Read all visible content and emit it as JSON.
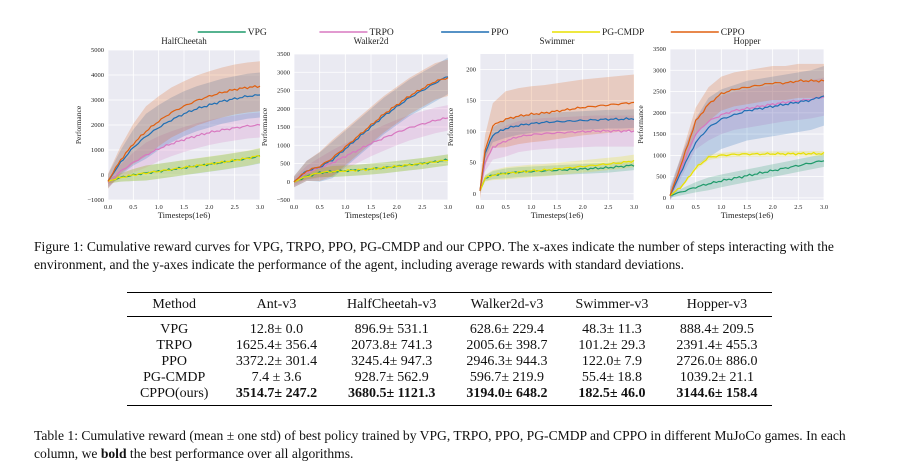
{
  "legend": [
    {
      "name": "VPG",
      "color": "#1f9a6b"
    },
    {
      "name": "TRPO",
      "color": "#d878c0"
    },
    {
      "name": "PPO",
      "color": "#1f6fb4"
    },
    {
      "name": "PG-CMDP",
      "color": "#e8e000"
    },
    {
      "name": "CPPO",
      "color": "#e06010"
    }
  ],
  "chart_data": [
    {
      "type": "line",
      "title": "HalfCheetah",
      "xlabel": "Timesteps(1e6)",
      "ylabel": "Performance",
      "xlim": [
        0,
        3.0
      ],
      "ylim": [
        -1000,
        5000
      ],
      "xticks": [
        "0.0",
        "0.5",
        "1.0",
        "1.5",
        "2.0",
        "2.5",
        "3.0"
      ],
      "yticks": [
        "−1000",
        "0",
        "1000",
        "2000",
        "3000",
        "4000",
        "5000"
      ],
      "x": [
        0,
        0.25,
        0.5,
        0.75,
        1.0,
        1.25,
        1.5,
        1.75,
        2.0,
        2.25,
        2.5,
        2.75,
        3.0
      ],
      "series": [
        {
          "name": "VPG",
          "values": [
            -250,
            -100,
            0,
            80,
            150,
            220,
            290,
            360,
            430,
            500,
            580,
            660,
            760
          ],
          "std": 300
        },
        {
          "name": "TRPO",
          "values": [
            -300,
            150,
            500,
            800,
            1050,
            1250,
            1420,
            1570,
            1700,
            1800,
            1880,
            1960,
            2000
          ],
          "std": 500
        },
        {
          "name": "PPO",
          "values": [
            -250,
            500,
            1100,
            1550,
            1900,
            2200,
            2450,
            2650,
            2800,
            2950,
            3050,
            3150,
            3200
          ],
          "std": 900
        },
        {
          "name": "PG-CMDP",
          "values": [
            -250,
            -100,
            0,
            80,
            150,
            220,
            300,
            370,
            440,
            510,
            590,
            670,
            780
          ],
          "std": 300
        },
        {
          "name": "CPPO",
          "values": [
            -250,
            600,
            1250,
            1750,
            2150,
            2500,
            2750,
            2980,
            3150,
            3300,
            3420,
            3500,
            3550
          ],
          "std": 1000
        }
      ]
    },
    {
      "type": "line",
      "title": "Walker2d",
      "xlabel": "Timesteps(1e6)",
      "ylabel": "Performance",
      "xlim": [
        0,
        3.0
      ],
      "ylim": [
        -500,
        3500
      ],
      "xticks": [
        "0.0",
        "0.5",
        "1.0",
        "1.5",
        "2.0",
        "2.5",
        "3.0"
      ],
      "yticks": [
        "−500",
        "0",
        "500",
        "1000",
        "1500",
        "2000",
        "2500",
        "3000",
        "3500"
      ],
      "x": [
        0,
        0.25,
        0.5,
        0.75,
        1.0,
        1.25,
        1.5,
        1.75,
        2.0,
        2.25,
        2.5,
        2.75,
        3.0
      ],
      "series": [
        {
          "name": "VPG",
          "values": [
            0,
            150,
            250,
            280,
            300,
            320,
            350,
            380,
            420,
            460,
            500,
            550,
            600
          ],
          "std": 150
        },
        {
          "name": "TRPO",
          "values": [
            0,
            250,
            380,
            520,
            700,
            870,
            1050,
            1200,
            1350,
            1480,
            1580,
            1680,
            1750
          ],
          "std": 350
        },
        {
          "name": "PPO",
          "values": [
            0,
            300,
            400,
            600,
            900,
            1200,
            1500,
            1800,
            2050,
            2300,
            2500,
            2700,
            2900
          ],
          "std": 500
        },
        {
          "name": "PG-CMDP",
          "values": [
            0,
            150,
            250,
            280,
            300,
            320,
            350,
            380,
            420,
            460,
            500,
            550,
            600
          ],
          "std": 150
        },
        {
          "name": "CPPO",
          "values": [
            0,
            300,
            420,
            650,
            950,
            1250,
            1550,
            1850,
            2100,
            2350,
            2550,
            2750,
            2850
          ],
          "std": 500
        }
      ]
    },
    {
      "type": "line",
      "title": "Swimmer",
      "xlabel": "Timesteps(1e6)",
      "ylabel": "Performance",
      "xlim": [
        0,
        3.0
      ],
      "ylim": [
        -10,
        225
      ],
      "xticks": [
        "0.0",
        "0.5",
        "1.0",
        "1.5",
        "2.0",
        "2.5",
        "3.0"
      ],
      "yticks": [
        "0",
        "50",
        "100",
        "150",
        "200"
      ],
      "x": [
        0,
        0.1,
        0.25,
        0.5,
        0.75,
        1.0,
        1.25,
        1.5,
        1.75,
        2.0,
        2.25,
        2.5,
        2.75,
        3.0
      ],
      "series": [
        {
          "name": "VPG",
          "values": [
            5,
            25,
            30,
            33,
            35,
            36,
            37,
            38,
            39,
            40,
            41,
            42,
            44,
            46
          ],
          "std": 8
        },
        {
          "name": "TRPO",
          "values": [
            5,
            50,
            75,
            85,
            92,
            95,
            97,
            98,
            99,
            100,
            101,
            101,
            101,
            101
          ],
          "std": 25
        },
        {
          "name": "PPO",
          "values": [
            5,
            65,
            95,
            105,
            110,
            113,
            115,
            116,
            117,
            118,
            119,
            120,
            120,
            121
          ],
          "std": 15
        },
        {
          "name": "PG-CMDP",
          "values": [
            5,
            25,
            30,
            33,
            35,
            37,
            38,
            40,
            42,
            44,
            46,
            48,
            50,
            53
          ],
          "std": 10
        },
        {
          "name": "CPPO",
          "values": [
            5,
            70,
            110,
            120,
            125,
            128,
            130,
            133,
            136,
            139,
            141,
            143,
            145,
            147
          ],
          "std": 45
        }
      ]
    },
    {
      "type": "line",
      "title": "Hopper",
      "xlabel": "Timesteps(1e6)",
      "ylabel": "Performance",
      "xlim": [
        0,
        3.0
      ],
      "ylim": [
        -50,
        3500
      ],
      "xticks": [
        "0.0",
        "0.5",
        "1.0",
        "1.5",
        "2.0",
        "2.5",
        "3.0"
      ],
      "yticks": [
        "0",
        "500",
        "1000",
        "1500",
        "2000",
        "2500",
        "3000",
        "3500"
      ],
      "x": [
        0,
        0.25,
        0.5,
        0.75,
        1.0,
        1.25,
        1.5,
        1.75,
        2.0,
        2.25,
        2.5,
        2.75,
        3.0
      ],
      "series": [
        {
          "name": "VPG",
          "values": [
            50,
            150,
            250,
            330,
            400,
            460,
            520,
            580,
            640,
            700,
            760,
            820,
            880
          ],
          "std": 150
        },
        {
          "name": "TRPO",
          "values": [
            50,
            800,
            1500,
            1800,
            1950,
            2050,
            2100,
            2150,
            2200,
            2250,
            2280,
            2320,
            2380
          ],
          "std": 450
        },
        {
          "name": "PPO",
          "values": [
            50,
            700,
            1300,
            1650,
            1850,
            1950,
            2050,
            2100,
            2150,
            2200,
            2250,
            2300,
            2400
          ],
          "std": 700
        },
        {
          "name": "PG-CMDP",
          "values": [
            50,
            300,
            700,
            950,
            1000,
            1020,
            1030,
            1030,
            1035,
            1035,
            1040,
            1040,
            1040
          ],
          "std": 60
        },
        {
          "name": "CPPO",
          "values": [
            50,
            900,
            1800,
            2200,
            2450,
            2550,
            2600,
            2650,
            2700,
            2700,
            2750,
            2750,
            2750
          ],
          "std": 400
        }
      ]
    }
  ],
  "figure_caption": "Figure 1: Cumulative reward curves for VPG, TRPO, PPO, PG-CMDP and our CPPO. The x-axes indicate the number of steps interacting with the environment, and the y-axes indicate the performance of the agent, including average rewards with standard deviations.",
  "table": {
    "headers": [
      "Method",
      "Ant-v3",
      "HalfCheetah-v3",
      "Walker2d-v3",
      "Swimmer-v3",
      "Hopper-v3"
    ],
    "rows": [
      {
        "cells": [
          "VPG",
          "12.8± 0.0",
          "896.9± 531.1",
          "628.6± 229.4",
          "48.3± 11.3",
          "888.4± 209.5"
        ],
        "bold": false
      },
      {
        "cells": [
          "TRPO",
          "1625.4± 356.4",
          "2073.8± 741.3",
          "2005.6± 398.7",
          "101.2± 29.3",
          "2391.4± 455.3"
        ],
        "bold": false
      },
      {
        "cells": [
          "PPO",
          "3372.2± 301.4",
          "3245.4± 947.3",
          "2946.3± 944.3",
          "122.0± 7.9",
          "2726.0± 886.0"
        ],
        "bold": false
      },
      {
        "cells": [
          "PG-CMDP",
          "7.4 ± 3.6",
          "928.7± 562.9",
          "596.7± 219.9",
          "55.4± 18.8",
          "1039.2± 21.1"
        ],
        "bold": false
      },
      {
        "cells": [
          "CPPO(ours)",
          "3514.7± 247.2",
          "3680.5± 1121.3",
          "3194.0± 648.2",
          "182.5± 46.0",
          "3144.6± 158.4"
        ],
        "bold": true
      }
    ]
  },
  "table_caption": {
    "before": "Table 1: Cumulative reward (mean ± one std) of best policy trained by VPG, TRPO, PPO, PG-CMDP and CPPO in different MuJoCo games. In each column, we ",
    "bold": "bold",
    "after": " the best performance over all algorithms."
  }
}
